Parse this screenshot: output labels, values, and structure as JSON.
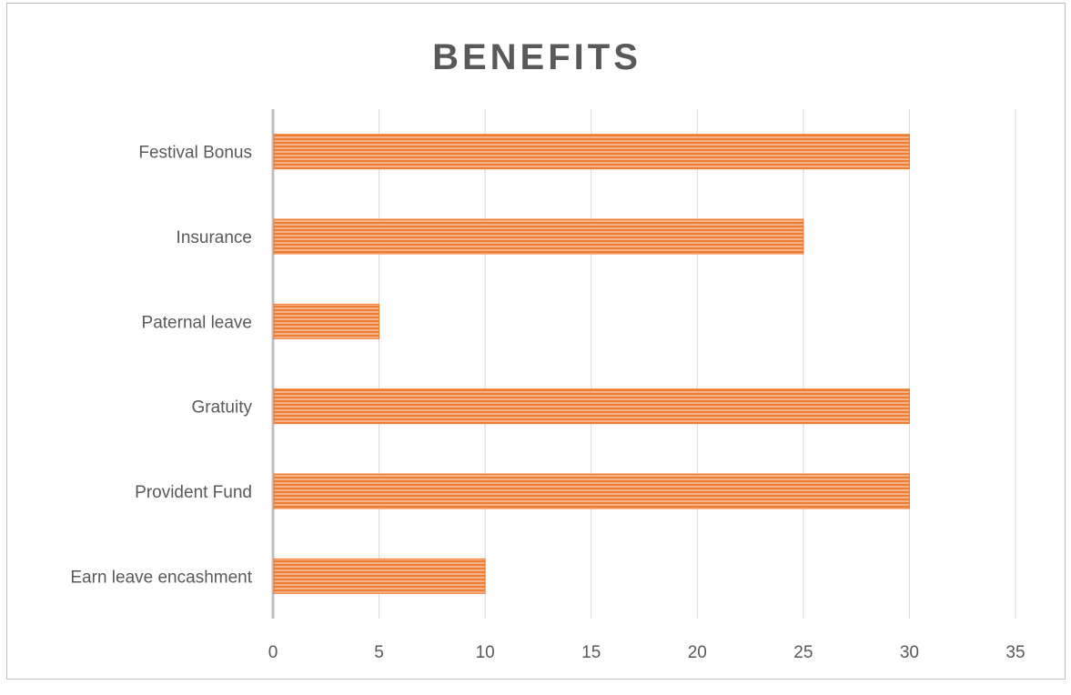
{
  "chart_data": {
    "type": "bar",
    "orientation": "horizontal",
    "title": "BENEFITS",
    "categories": [
      "Festival Bonus",
      "Insurance",
      "Paternal leave",
      "Gratuity",
      "Provident Fund",
      "Earn leave encashment"
    ],
    "values": [
      30,
      25,
      5,
      30,
      30,
      10
    ],
    "xlim": [
      0,
      35
    ],
    "xticks": [
      "0",
      "5",
      "10",
      "15",
      "20",
      "25",
      "30",
      "35"
    ],
    "grid": true,
    "bar_color": "#ed7d31",
    "bar_highlight": "#f8cbad",
    "xlabel": "",
    "ylabel": ""
  }
}
